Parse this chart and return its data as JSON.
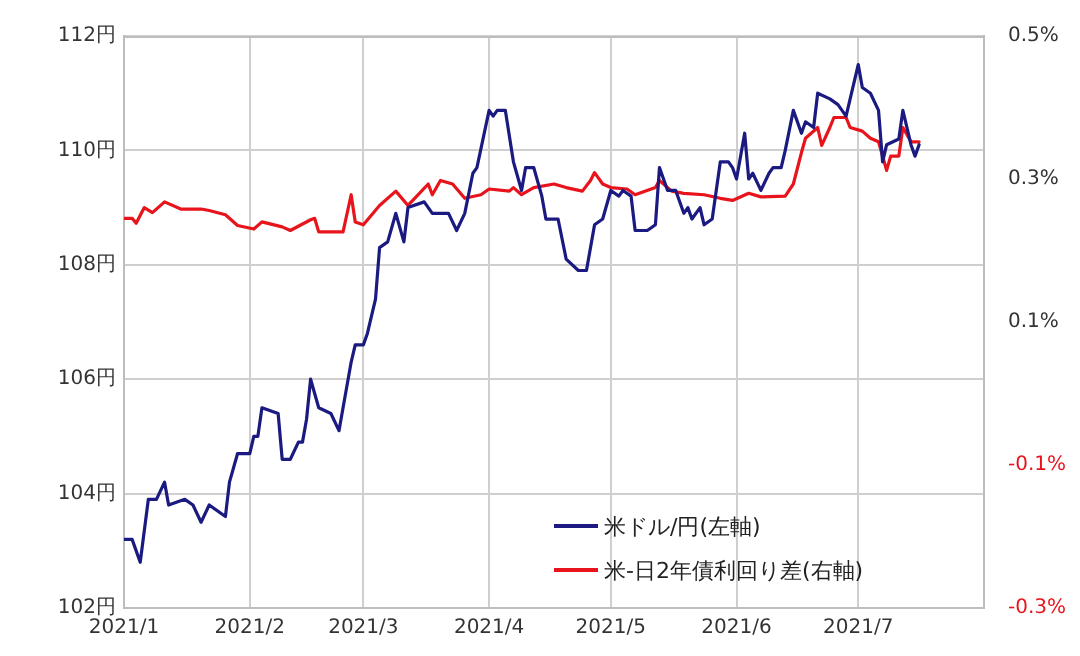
{
  "chart_data": {
    "type": "line",
    "xlim": [
      "2021-01-01",
      "2021-08-01"
    ],
    "xticks": [
      {
        "value": "2021-01-01",
        "label": "2021/1"
      },
      {
        "value": "2021-02-01",
        "label": "2021/2"
      },
      {
        "value": "2021-03-01",
        "label": "2021/3"
      },
      {
        "value": "2021-04-01",
        "label": "2021/4"
      },
      {
        "value": "2021-05-01",
        "label": "2021/5"
      },
      {
        "value": "2021-06-01",
        "label": "2021/6"
      },
      {
        "value": "2021-07-01",
        "label": "2021/7"
      }
    ],
    "ylim": [
      102,
      112
    ],
    "yticks": [
      {
        "value": 102,
        "label": "102円"
      },
      {
        "value": 104,
        "label": "104円"
      },
      {
        "value": 106,
        "label": "106円"
      },
      {
        "value": 108,
        "label": "108円"
      },
      {
        "value": 110,
        "label": "110円"
      },
      {
        "value": 112,
        "label": "112円"
      }
    ],
    "y2lim": [
      -0.3,
      0.5
    ],
    "y2ticks": [
      {
        "value": -0.3,
        "label": "-0.3%"
      },
      {
        "value": -0.1,
        "label": "-0.1%"
      },
      {
        "value": 0.1,
        "label": "0.1%"
      },
      {
        "value": 0.3,
        "label": "0.3%"
      },
      {
        "value": 0.5,
        "label": "0.5%"
      }
    ],
    "grid": true,
    "legend": "bottom right",
    "marker": "none",
    "line_style": "solid",
    "series": [
      {
        "name": "米ドル/円(左軸)",
        "color": "#1a1a80",
        "axis": "y",
        "x": [
          "2021-01-01",
          "2021-01-03",
          "2021-01-05",
          "2021-01-07",
          "2021-01-09",
          "2021-01-11",
          "2021-01-12",
          "2021-01-16",
          "2021-01-18",
          "2021-01-20",
          "2021-01-22",
          "2021-01-26",
          "2021-01-27",
          "2021-01-29",
          "2021-02-01",
          "2021-02-02",
          "2021-02-03",
          "2021-02-04",
          "2021-02-08",
          "2021-02-09",
          "2021-02-11",
          "2021-02-13",
          "2021-02-14",
          "2021-02-15",
          "2021-02-16",
          "2021-02-18",
          "2021-02-21",
          "2021-02-23",
          "2021-02-24",
          "2021-02-26",
          "2021-02-27",
          "2021-03-01",
          "2021-03-02",
          "2021-03-04",
          "2021-03-05",
          "2021-03-07",
          "2021-03-09",
          "2021-03-11",
          "2021-03-12",
          "2021-03-16",
          "2021-03-18",
          "2021-03-22",
          "2021-03-24",
          "2021-03-26",
          "2021-03-28",
          "2021-03-29",
          "2021-04-01",
          "2021-04-02",
          "2021-04-03",
          "2021-04-05",
          "2021-04-07",
          "2021-04-09",
          "2021-04-10",
          "2021-04-12",
          "2021-04-14",
          "2021-04-15",
          "2021-04-18",
          "2021-04-20",
          "2021-04-23",
          "2021-04-25",
          "2021-04-27",
          "2021-04-29",
          "2021-05-01",
          "2021-05-03",
          "2021-05-04",
          "2021-05-06",
          "2021-05-07",
          "2021-05-10",
          "2021-05-12",
          "2021-05-13",
          "2021-05-15",
          "2021-05-17",
          "2021-05-19",
          "2021-05-20",
          "2021-05-21",
          "2021-05-23",
          "2021-05-24",
          "2021-05-26",
          "2021-05-28",
          "2021-05-30",
          "2021-05-31",
          "2021-06-01",
          "2021-06-03",
          "2021-06-04",
          "2021-06-05",
          "2021-06-07",
          "2021-06-09",
          "2021-06-10",
          "2021-06-12",
          "2021-06-13",
          "2021-06-15",
          "2021-06-17",
          "2021-06-18",
          "2021-06-20",
          "2021-06-21",
          "2021-06-24",
          "2021-06-26",
          "2021-06-28",
          "2021-07-01",
          "2021-07-02",
          "2021-07-04",
          "2021-07-06",
          "2021-07-07",
          "2021-07-08",
          "2021-07-11",
          "2021-07-12",
          "2021-07-14",
          "2021-07-15",
          "2021-07-16"
        ],
        "values": [
          103.2,
          103.2,
          102.8,
          103.9,
          103.9,
          104.2,
          103.8,
          103.9,
          103.8,
          103.5,
          103.8,
          103.6,
          104.2,
          104.7,
          104.7,
          105.0,
          105.0,
          105.5,
          105.4,
          104.6,
          104.6,
          104.9,
          104.9,
          105.3,
          106.0,
          105.5,
          105.4,
          105.1,
          105.5,
          106.3,
          106.6,
          106.6,
          106.8,
          107.4,
          108.3,
          108.4,
          108.9,
          108.4,
          109.0,
          109.1,
          108.9,
          108.9,
          108.6,
          108.9,
          109.6,
          109.7,
          110.7,
          110.6,
          110.7,
          110.7,
          109.8,
          109.3,
          109.7,
          109.7,
          109.2,
          108.8,
          108.8,
          108.1,
          107.9,
          107.9,
          108.7,
          108.8,
          109.3,
          109.2,
          109.3,
          109.2,
          108.6,
          108.6,
          108.7,
          109.7,
          109.3,
          109.3,
          108.9,
          109.0,
          108.8,
          109.0,
          108.7,
          108.8,
          109.8,
          109.8,
          109.7,
          109.5,
          110.3,
          109.5,
          109.6,
          109.3,
          109.6,
          109.7,
          109.7,
          110.0,
          110.7,
          110.3,
          110.5,
          110.4,
          111.0,
          110.9,
          110.8,
          110.6,
          111.5,
          111.1,
          111.0,
          110.7,
          109.8,
          110.1,
          110.2,
          110.7,
          110.1,
          109.9,
          110.1
        ]
      },
      {
        "name": "米-日2年債利回り差(右軸)",
        "color": "#e8141c",
        "axis": "y2",
        "x": [
          "2021-01-01",
          "2021-01-03",
          "2021-01-04",
          "2021-01-06",
          "2021-01-08",
          "2021-01-11",
          "2021-01-15",
          "2021-01-20",
          "2021-01-22",
          "2021-01-26",
          "2021-01-29",
          "2021-02-02",
          "2021-02-04",
          "2021-02-09",
          "2021-02-11",
          "2021-02-16",
          "2021-02-17",
          "2021-02-18",
          "2021-02-24",
          "2021-02-26",
          "2021-02-27",
          "2021-03-01",
          "2021-03-05",
          "2021-03-09",
          "2021-03-12",
          "2021-03-14",
          "2021-03-17",
          "2021-03-18",
          "2021-03-20",
          "2021-03-23",
          "2021-03-26",
          "2021-03-30",
          "2021-04-01",
          "2021-04-06",
          "2021-04-07",
          "2021-04-09",
          "2021-04-12",
          "2021-04-17",
          "2021-04-20",
          "2021-04-24",
          "2021-04-26",
          "2021-04-27",
          "2021-04-29",
          "2021-05-01",
          "2021-05-05",
          "2021-05-07",
          "2021-05-12",
          "2021-05-13",
          "2021-05-16",
          "2021-05-19",
          "2021-05-24",
          "2021-05-28",
          "2021-05-31",
          "2021-06-04",
          "2021-06-07",
          "2021-06-13",
          "2021-06-15",
          "2021-06-17",
          "2021-06-18",
          "2021-06-21",
          "2021-06-22",
          "2021-06-24",
          "2021-06-25",
          "2021-06-28",
          "2021-06-29",
          "2021-07-02",
          "2021-07-04",
          "2021-07-06",
          "2021-07-08",
          "2021-07-09",
          "2021-07-11",
          "2021-07-12",
          "2021-07-14",
          "2021-07-16"
        ],
        "values": [
          0.245,
          0.245,
          0.238,
          0.26,
          0.253,
          0.268,
          0.258,
          0.258,
          0.256,
          0.25,
          0.235,
          0.23,
          0.24,
          0.233,
          0.228,
          0.243,
          0.245,
          0.226,
          0.226,
          0.278,
          0.24,
          0.236,
          0.263,
          0.283,
          0.263,
          0.275,
          0.293,
          0.278,
          0.298,
          0.293,
          0.273,
          0.278,
          0.286,
          0.283,
          0.288,
          0.278,
          0.288,
          0.293,
          0.288,
          0.283,
          0.298,
          0.309,
          0.293,
          0.288,
          0.286,
          0.278,
          0.288,
          0.298,
          0.283,
          0.28,
          0.278,
          0.273,
          0.27,
          0.28,
          0.275,
          0.276,
          0.293,
          0.337,
          0.357,
          0.372,
          0.347,
          0.372,
          0.386,
          0.386,
          0.372,
          0.367,
          0.357,
          0.352,
          0.312,
          0.332,
          0.332,
          0.372,
          0.352,
          0.352
        ]
      }
    ]
  }
}
